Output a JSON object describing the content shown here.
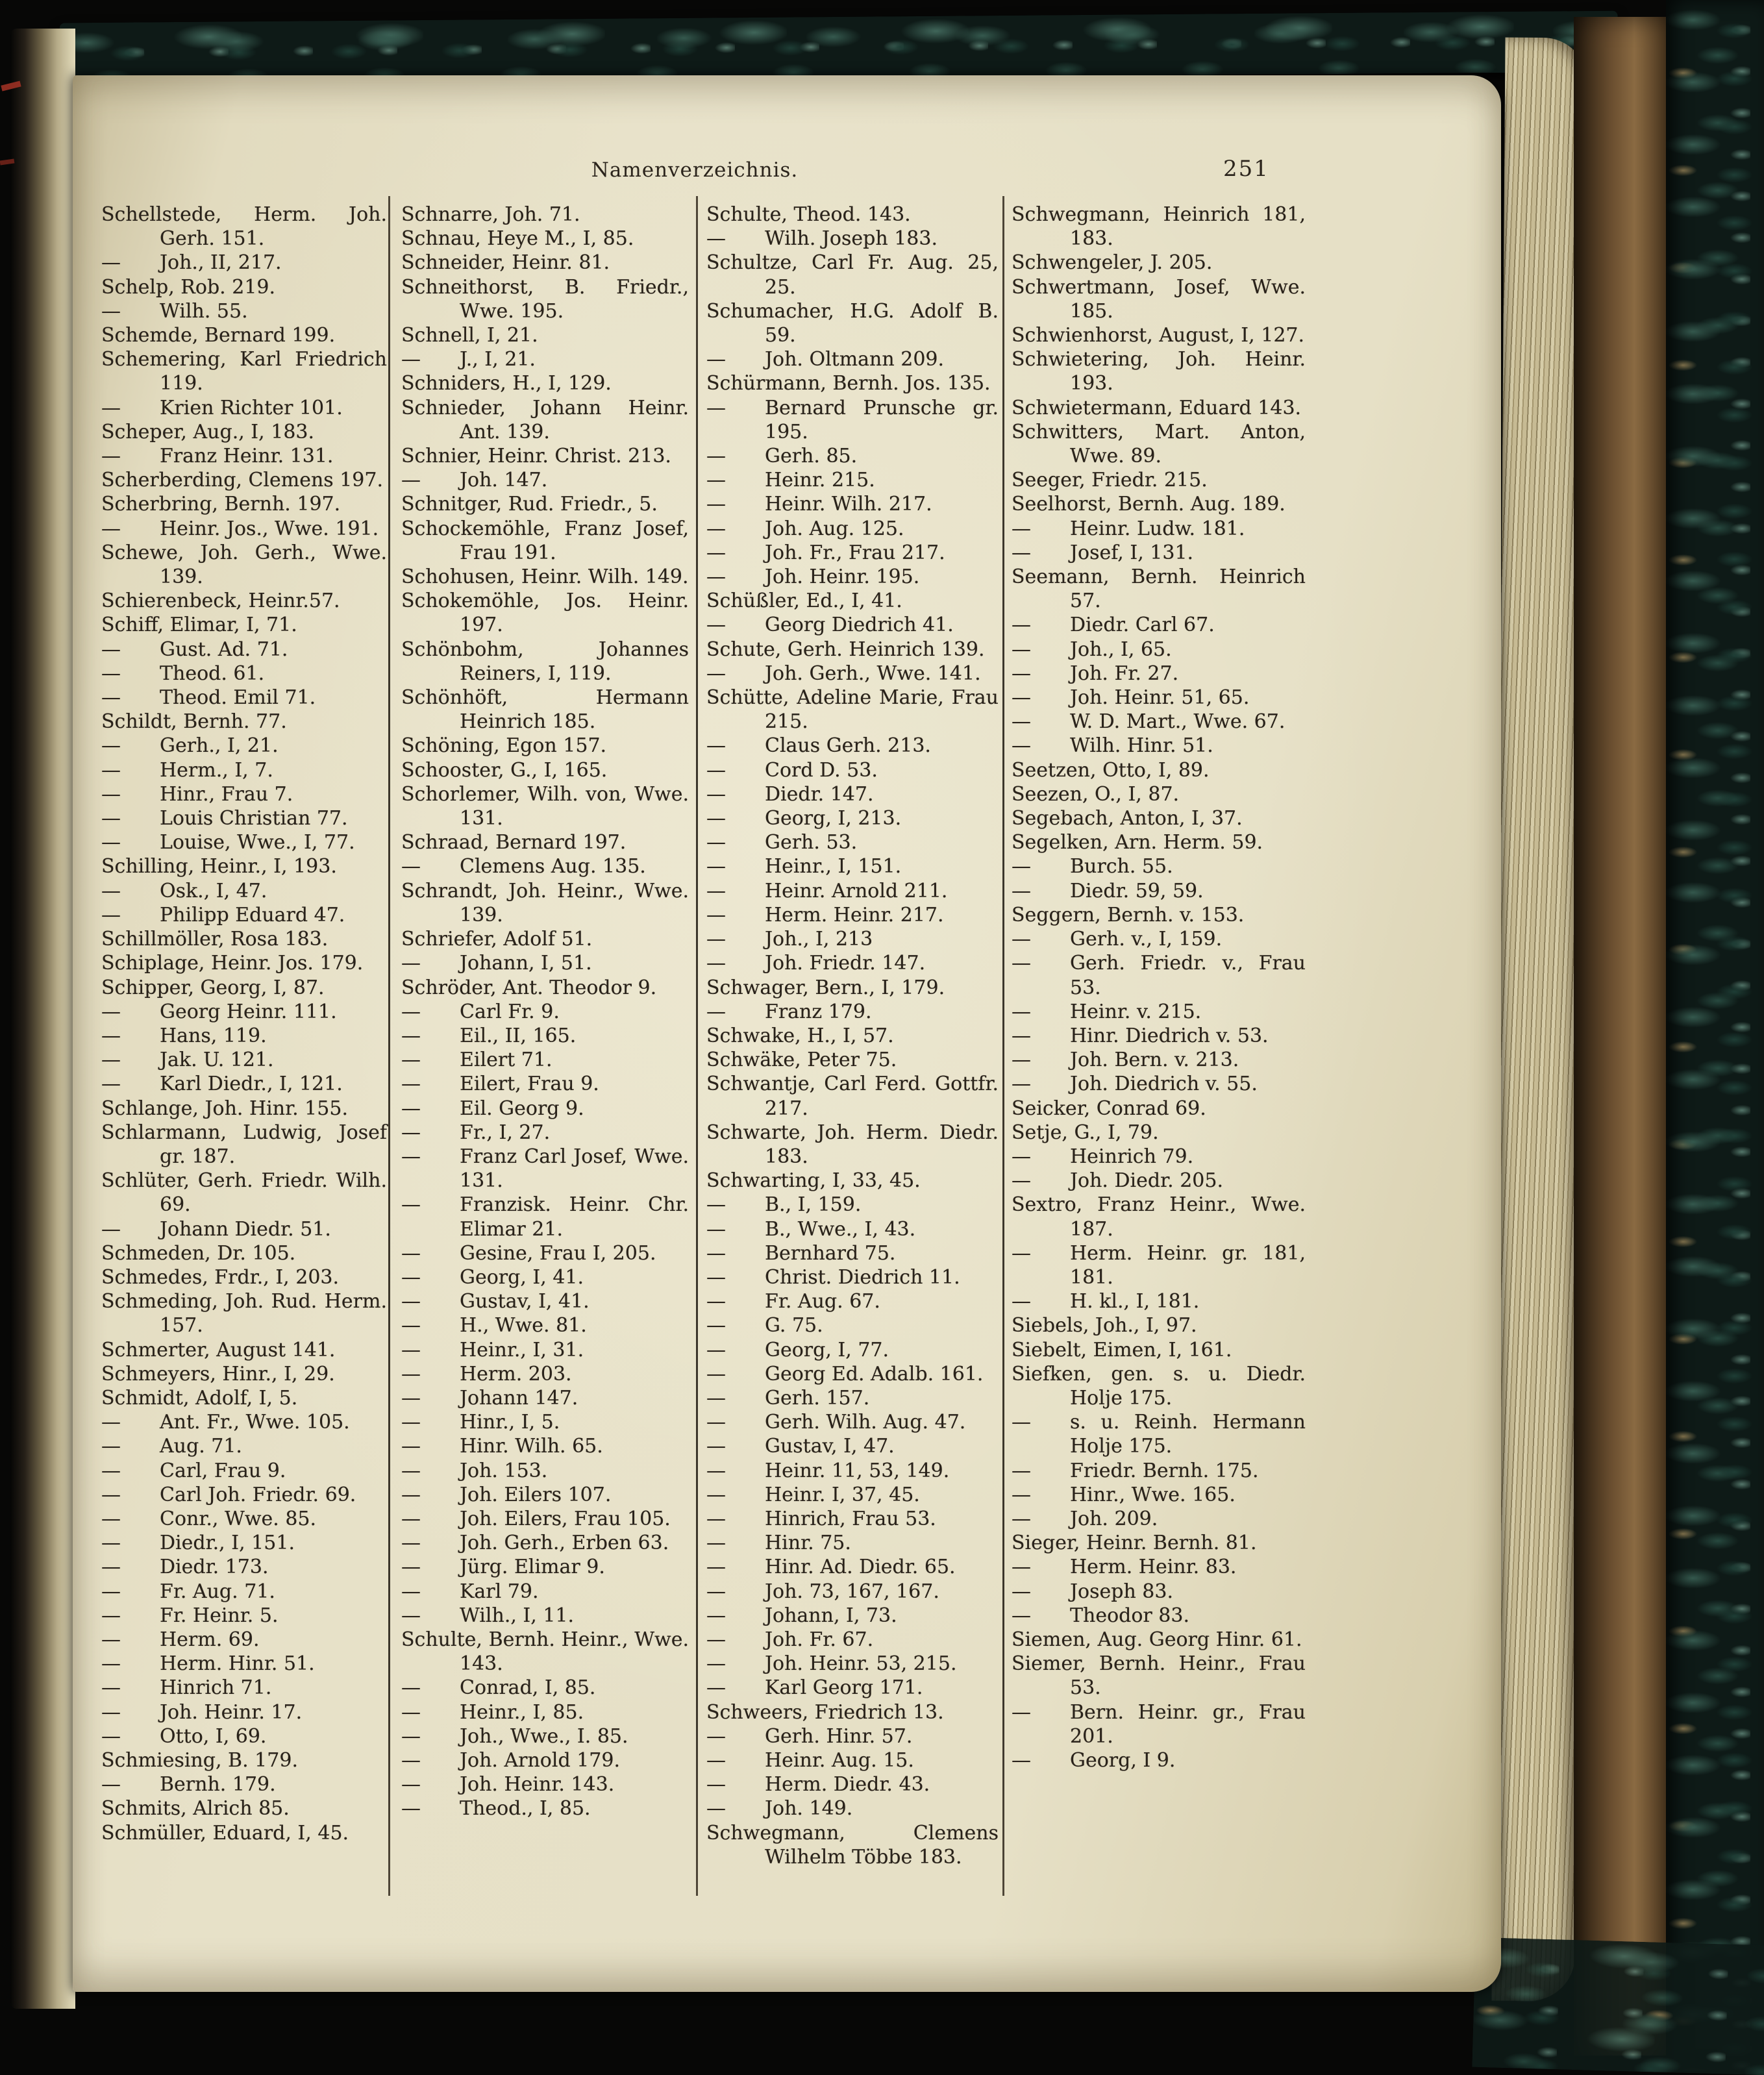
{
  "page": {
    "header_title": "Namenverzeichnis.",
    "page_number": "251"
  },
  "colors": {
    "paper": "#e6e0c6",
    "ink": "#29221a",
    "marble_teal": "#35594e",
    "board_brown": "#6b4f30",
    "red_mark": "#a53226"
  },
  "columns": [
    {
      "entries": [
        "Schellstede, Herm. Joh. Gerh. 151.",
        "— Joh., II, 217.",
        "Schelp, Rob. 219.",
        "— Wilh. 55.",
        "Schemde, Bernard 199.",
        "Schemering, Karl Friedrich 119.",
        "— Krien Richter 101.",
        "Scheper, Aug., I, 183.",
        "— Franz Heinr. 131.",
        "Scherberding, Clemens 197.",
        "Scherbring, Bernh. 197.",
        "— Heinr. Jos., Wwe. 191.",
        "Schewe, Joh. Gerh., Wwe. 139.",
        "Schierenbeck, Heinr.57.",
        "Schiff, Elimar, I, 71.",
        "— Gust. Ad. 71.",
        "— Theod. 61.",
        "— Theod. Emil 71.",
        "Schildt, Bernh. 77.",
        "— Gerh., I, 21.",
        "— Herm., I, 7.",
        "— Hinr., Frau 7.",
        "— Louis Christian 77.",
        "— Louise, Wwe., I, 77.",
        "Schilling, Heinr., I, 193.",
        "— Osk., I, 47.",
        "— Philipp Eduard 47.",
        "Schillmöller, Rosa 183.",
        "Schiplage, Heinr. Jos. 179.",
        "Schipper, Georg, I, 87.",
        "— Georg Heinr. 111.",
        "— Hans, 119.",
        "— Jak. U. 121.",
        "— Karl Diedr., I, 121.",
        "Schlange, Joh. Hinr. 155.",
        "Schlarmann, Ludwig, Josef gr. 187.",
        "Schlüter, Gerh. Friedr. Wilh. 69.",
        "— Johann Diedr. 51.",
        "Schmeden, Dr. 105.",
        "Schmedes, Frdr., I, 203.",
        "Schmeding, Joh. Rud. Herm. 157.",
        "Schmerter, August 141.",
        "Schmeyers, Hinr., I, 29.",
        "Schmidt, Adolf, I, 5.",
        "— Ant. Fr., Wwe. 105.",
        "— Aug. 71.",
        "— Carl, Frau 9.",
        "— Carl Joh. Friedr. 69.",
        "— Conr., Wwe. 85.",
        "— Diedr., I, 151.",
        "— Diedr. 173.",
        "— Fr. Aug. 71.",
        "— Fr. Heinr. 5.",
        "— Herm. 69.",
        "— Herm. Hinr. 51.",
        "— Hinrich 71.",
        "— Joh. Heinr. 17.",
        "— Otto, I, 69.",
        "Schmiesing, B. 179.",
        "— Bernh. 179.",
        "Schmits, Alrich 85.",
        "Schmüller, Eduard, I, 45."
      ]
    },
    {
      "entries": [
        "Schnarre, Joh. 71.",
        "Schnau, Heye M., I, 85.",
        "Schneider, Heinr. 81.",
        "Schneithorst, B. Friedr., Wwe. 195.",
        "Schnell, I, 21.",
        "— J., I, 21.",
        "Schniders, H., I, 129.",
        "Schnieder, Johann Heinr. Ant. 139.",
        "Schnier, Heinr. Christ. 213.",
        "— Joh. 147.",
        "Schnitger, Rud. Friedr., 5.",
        "Schockemöhle, Franz Josef, Frau 191.",
        "Schohusen, Heinr. Wilh. 149.",
        "Schokemöhle, Jos. Heinr. 197.",
        "Schönbohm, Johannes Reiners, I, 119.",
        "Schönhöft, Hermann Heinrich 185.",
        "Schöning, Egon 157.",
        "Schooster, G., I, 165.",
        "Schorlemer, Wilh. von, Wwe. 131.",
        "Schraad, Bernard 197.",
        "— Clemens Aug. 135.",
        "Schrandt, Joh. Heinr., Wwe. 139.",
        "Schriefer, Adolf 51.",
        "— Johann, I, 51.",
        "Schröder, Ant. Theodor 9.",
        "— Carl Fr. 9.",
        "— Eil., II, 165.",
        "— Eilert 71.",
        "— Eilert, Frau 9.",
        "— Eil. Georg 9.",
        "— Fr., I, 27.",
        "— Franz Carl Josef, Wwe. 131.",
        "— Franzisk. Heinr. Chr. Elimar 21.",
        "— Gesine, Frau I, 205.",
        "— Georg, I, 41.",
        "— Gustav, I, 41.",
        "— H., Wwe. 81.",
        "— Heinr., I, 31.",
        "— Herm. 203.",
        "— Johann 147.",
        "— Hinr., I, 5.",
        "— Hinr. Wilh. 65.",
        "— Joh. 153.",
        "— Joh. Eilers 107.",
        "— Joh. Eilers, Frau 105.",
        "— Joh. Gerh., Erben 63.",
        "— Jürg. Elimar 9.",
        "— Karl 79.",
        "— Wilh., I, 11.",
        "Schulte, Bernh. Heinr., Wwe. 143.",
        "— Conrad, I, 85.",
        "— Heinr., I, 85.",
        "— Joh., Wwe., I. 85.",
        "— Joh. Arnold 179.",
        "— Joh. Heinr. 143.",
        "— Theod., I, 85."
      ]
    },
    {
      "entries": [
        "Schulte, Theod. 143.",
        "— Wilh. Joseph 183.",
        "Schultze, Carl Fr. Aug. 25, 25.",
        "Schumacher, H.G. Adolf B. 59.",
        "— Joh. Oltmann 209.",
        "Schürmann, Bernh. Jos. 135.",
        "— Bernard Prunsche gr. 195.",
        "— Gerh. 85.",
        "— Heinr. 215.",
        "— Heinr. Wilh. 217.",
        "— Joh. Aug. 125.",
        "— Joh. Fr., Frau 217.",
        "— Joh. Heinr. 195.",
        "Schüßler, Ed., I, 41.",
        "— Georg Diedrich 41.",
        "Schute, Gerh. Heinrich 139.",
        "— Joh. Gerh., Wwe. 141.",
        "Schütte, Adeline Marie, Frau 215.",
        "— Claus Gerh. 213.",
        "— Cord D. 53.",
        "— Diedr. 147.",
        "— Georg, I, 213.",
        "— Gerh. 53.",
        "— Heinr., I, 151.",
        "— Heinr. Arnold 211.",
        "— Herm. Heinr. 217.",
        "— Joh., I, 213",
        "— Joh. Friedr. 147.",
        "Schwager, Bern., I, 179.",
        "— Franz 179.",
        "Schwake, H., I, 57.",
        "Schwäke, Peter 75.",
        "Schwantje, Carl Ferd. Gottfr. 217.",
        "Schwarte, Joh. Herm. Diedr. 183.",
        "Schwarting, I, 33, 45.",
        "— B., I, 159.",
        "— B., Wwe., I, 43.",
        "— Bernhard 75.",
        "— Christ. Diedrich 11.",
        "— Fr. Aug. 67.",
        "— G. 75.",
        "— Georg, I, 77.",
        "— Georg Ed. Adalb. 161.",
        "— Gerh. 157.",
        "— Gerh. Wilh. Aug. 47.",
        "— Gustav, I, 47.",
        "— Heinr. 11, 53, 149.",
        "— Heinr. I, 37, 45.",
        "— Hinrich, Frau 53.",
        "— Hinr. 75.",
        "— Hinr. Ad. Diedr. 65.",
        "— Joh. 73, 167, 167.",
        "— Johann, I, 73.",
        "— Joh. Fr. 67.",
        "— Joh. Heinr. 53, 215.",
        "— Karl Georg 171.",
        "Schweers, Friedrich 13.",
        "— Gerh. Hinr. 57.",
        "— Heinr. Aug. 15.",
        "— Herm. Diedr. 43.",
        "— Joh. 149.",
        "Schwegmann, Clemens Wilhelm Többe 183."
      ]
    },
    {
      "entries": [
        "Schwegmann, Heinrich 181, 183.",
        "Schwengeler, J. 205.",
        "Schwertmann, Josef, Wwe. 185.",
        "Schwienhorst, August, I, 127.",
        "Schwietering, Joh. Heinr. 193.",
        "Schwietermann, Eduard 143.",
        "Schwitters, Mart. Anton, Wwe. 89.",
        "Seeger, Friedr. 215.",
        "Seelhorst, Bernh. Aug. 189.",
        "— Heinr. Ludw. 181.",
        "— Josef, I, 131.",
        "Seemann, Bernh. Heinrich 57.",
        "— Diedr. Carl 67.",
        "— Joh., I, 65.",
        "— Joh. Fr. 27.",
        "— Joh. Heinr. 51, 65.",
        "— W. D. Mart., Wwe. 67.",
        "— Wilh. Hinr. 51.",
        "Seetzen, Otto, I, 89.",
        "Seezen, O., I, 87.",
        "Segebach, Anton, I, 37.",
        "Segelken, Arn. Herm. 59.",
        "— Burch. 55.",
        "— Diedr. 59, 59.",
        "Seggern, Bernh. v. 153.",
        "— Gerh. v., I, 159.",
        "— Gerh. Friedr. v., Frau 53.",
        "— Heinr. v. 215.",
        "— Hinr. Diedrich v. 53.",
        "— Joh. Bern. v. 213.",
        "— Joh. Diedrich v. 55.",
        "Seicker, Conrad 69.",
        "Setje, G., I, 79.",
        "— Heinrich 79.",
        "— Joh. Diedr. 205.",
        "Sextro, Franz Heinr., Wwe. 187.",
        "— Herm. Heinr. gr. 181, 181.",
        "— H. kl., I, 181.",
        "Siebels, Joh., I, 97.",
        "Siebelt, Eimen, I, 161.",
        "Siefken, gen. s. u. Diedr. Holje 175.",
        "— s. u. Reinh. Hermann Holje 175.",
        "— Friedr. Bernh. 175.",
        "— Hinr., Wwe. 165.",
        "— Joh. 209.",
        "Sieger, Heinr. Bernh. 81.",
        "— Herm. Heinr. 83.",
        "— Joseph 83.",
        "— Theodor 83.",
        "Siemen, Aug. Georg Hinr. 61.",
        "Siemer, Bernh. Heinr., Frau 53.",
        "— Bern. Heinr. gr., Frau 201.",
        "— Georg, I 9."
      ]
    }
  ]
}
